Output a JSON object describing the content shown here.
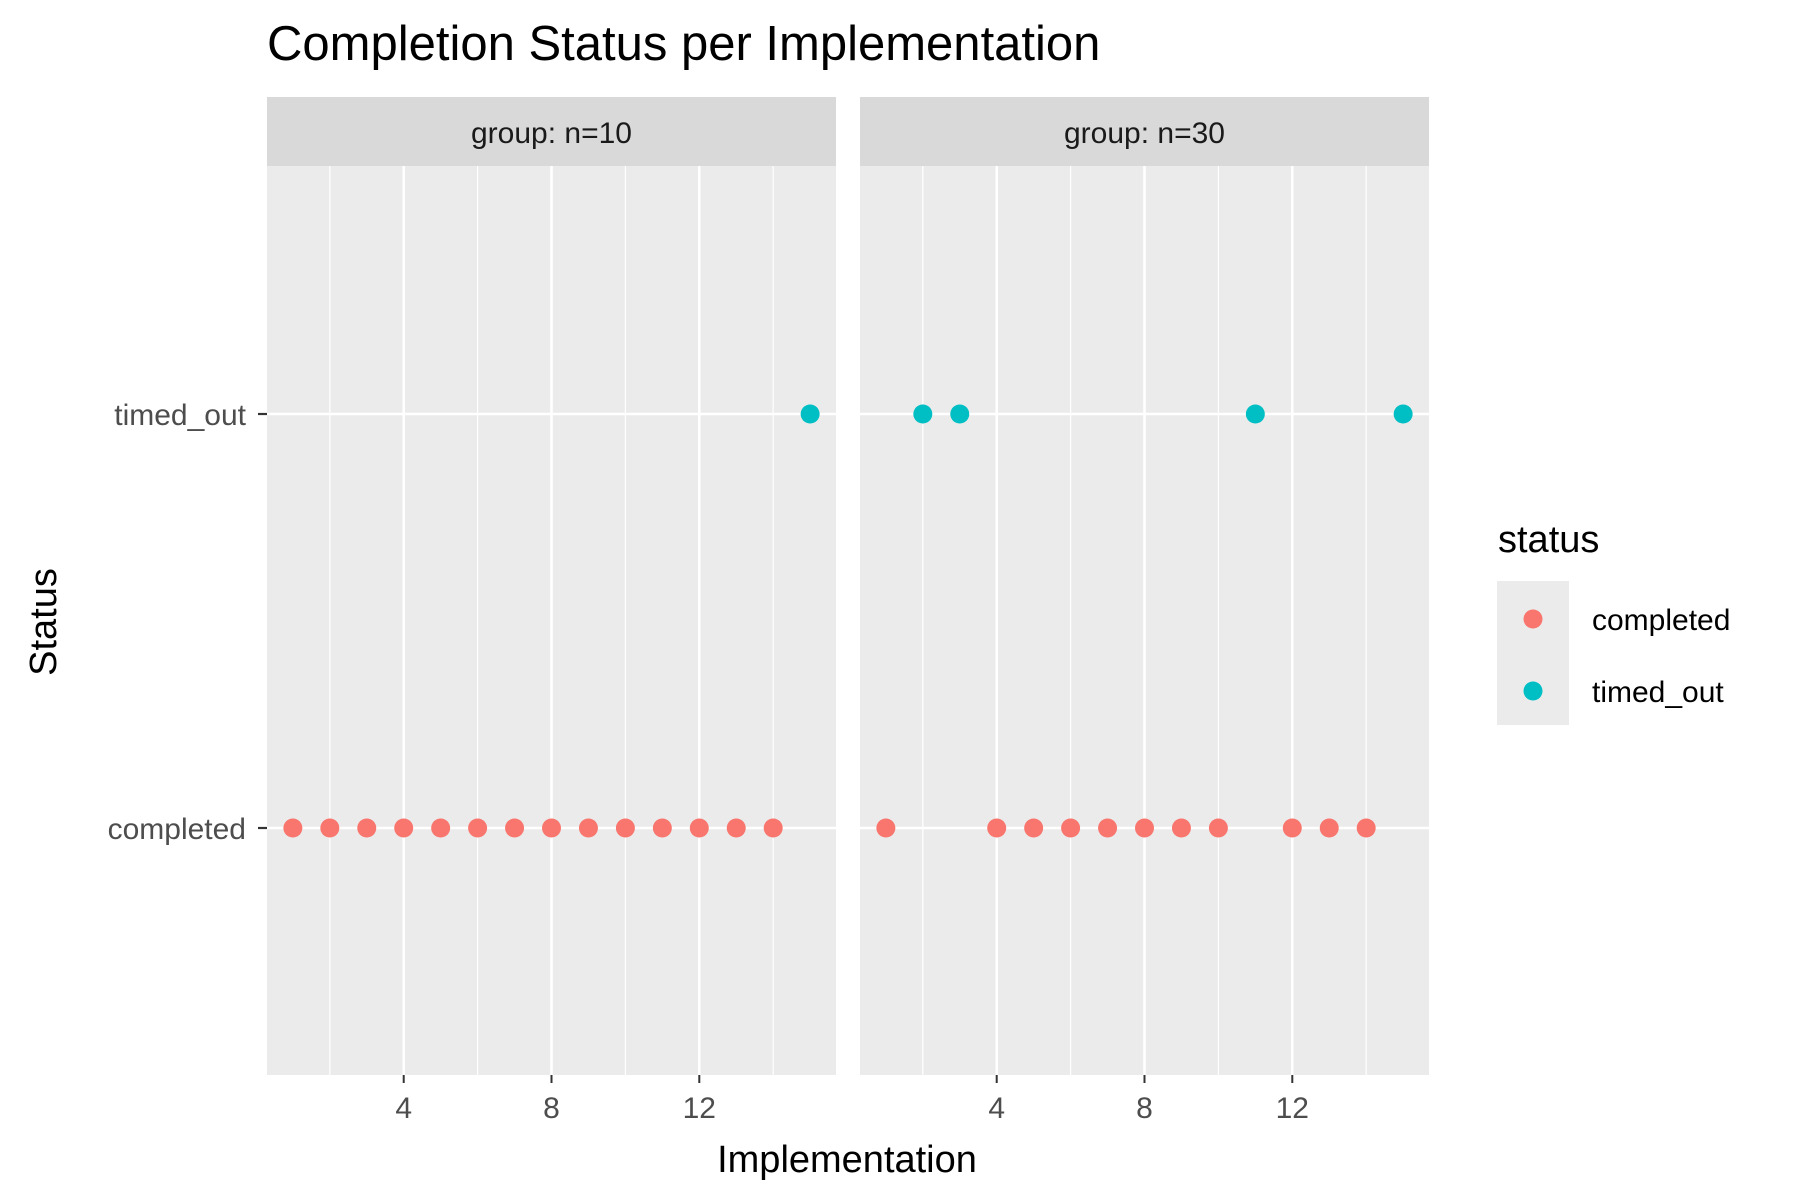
{
  "chart_data": {
    "type": "scatter",
    "title": "Completion Status per Implementation",
    "xlabel": "Implementation",
    "ylabel": "Status",
    "y_categories": [
      "completed",
      "timed_out"
    ],
    "x_ticks": [
      4,
      8,
      12
    ],
    "xlim": [
      0.3,
      15.7
    ],
    "grid": true,
    "legend": {
      "title": "status",
      "position": "right",
      "entries": [
        {
          "label": "completed",
          "color": "#F8766D"
        },
        {
          "label": "timed_out",
          "color": "#00BFC4"
        }
      ]
    },
    "facets": [
      {
        "label": "group: n=10",
        "points": [
          {
            "x": 1,
            "y": "completed"
          },
          {
            "x": 2,
            "y": "completed"
          },
          {
            "x": 3,
            "y": "completed"
          },
          {
            "x": 4,
            "y": "completed"
          },
          {
            "x": 5,
            "y": "completed"
          },
          {
            "x": 6,
            "y": "completed"
          },
          {
            "x": 7,
            "y": "completed"
          },
          {
            "x": 8,
            "y": "completed"
          },
          {
            "x": 9,
            "y": "completed"
          },
          {
            "x": 10,
            "y": "completed"
          },
          {
            "x": 11,
            "y": "completed"
          },
          {
            "x": 12,
            "y": "completed"
          },
          {
            "x": 13,
            "y": "completed"
          },
          {
            "x": 14,
            "y": "completed"
          },
          {
            "x": 15,
            "y": "timed_out"
          }
        ]
      },
      {
        "label": "group: n=30",
        "points": [
          {
            "x": 1,
            "y": "completed"
          },
          {
            "x": 2,
            "y": "timed_out"
          },
          {
            "x": 3,
            "y": "timed_out"
          },
          {
            "x": 4,
            "y": "completed"
          },
          {
            "x": 5,
            "y": "completed"
          },
          {
            "x": 6,
            "y": "completed"
          },
          {
            "x": 7,
            "y": "completed"
          },
          {
            "x": 8,
            "y": "completed"
          },
          {
            "x": 9,
            "y": "completed"
          },
          {
            "x": 10,
            "y": "completed"
          },
          {
            "x": 11,
            "y": "timed_out"
          },
          {
            "x": 12,
            "y": "completed"
          },
          {
            "x": 13,
            "y": "completed"
          },
          {
            "x": 14,
            "y": "completed"
          },
          {
            "x": 15,
            "y": "timed_out"
          }
        ]
      }
    ]
  }
}
